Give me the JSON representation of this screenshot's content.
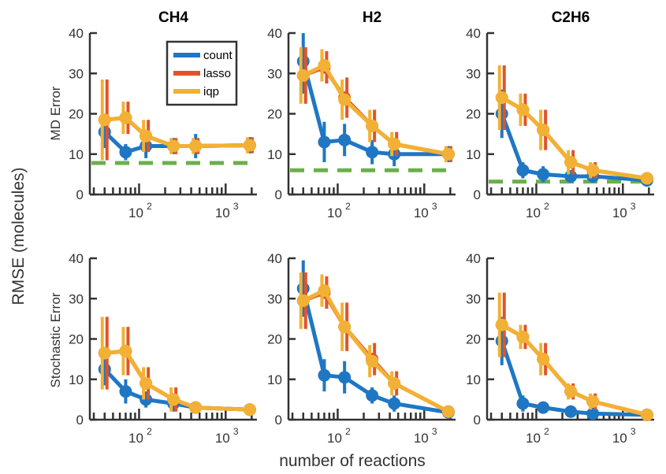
{
  "figure": {
    "ylabel": "RMSE (molecules)",
    "xlabel": "number of reactions",
    "row_labels": [
      "MD Error",
      "Stochastic Error"
    ],
    "col_titles": [
      "CH4",
      "H2",
      "C2H6"
    ]
  },
  "legend": {
    "entries": [
      {
        "label": "count",
        "color": "#1f77c4"
      },
      {
        "label": "lasso",
        "color": "#e0542a"
      },
      {
        "label": "iqp",
        "color": "#f2b134"
      }
    ]
  },
  "colors": {
    "count": "#1f77c4",
    "lasso": "#e0542a",
    "iqp": "#f2b134",
    "md_baseline": "#6ab04c",
    "axes": "#333333"
  },
  "axis": {
    "yticks": [
      "0",
      "10",
      "20",
      "30",
      "40"
    ],
    "xticks": [
      {
        "base": "10",
        "exp": "2"
      },
      {
        "base": "10",
        "exp": "3"
      }
    ]
  },
  "chart_data": [
    {
      "type": "line",
      "row": 0,
      "col": 0,
      "title": "CH4",
      "ylabel": "MD Error",
      "xscale": "log",
      "xlim": [
        27,
        2300
      ],
      "ylim": [
        0,
        40
      ],
      "baseline": 7.8,
      "x": [
        40,
        70,
        120,
        250,
        450,
        1900
      ],
      "series": [
        {
          "name": "count",
          "values": [
            15.5,
            10.5,
            12,
            12,
            12,
            12.2
          ],
          "err": [
            4,
            2,
            3,
            2,
            3,
            2
          ]
        },
        {
          "name": "lasso",
          "values": [
            18.5,
            19,
            14.5,
            12,
            12,
            12.2
          ],
          "err": [
            10,
            4,
            4,
            2,
            2,
            2
          ]
        },
        {
          "name": "iqp",
          "values": [
            18.5,
            19,
            14.5,
            12,
            12,
            12.2
          ],
          "err": [
            10,
            4,
            4,
            2,
            2,
            2
          ]
        }
      ]
    },
    {
      "type": "line",
      "row": 0,
      "col": 1,
      "title": "H2",
      "ylabel": "",
      "xscale": "log",
      "xlim": [
        27,
        2300
      ],
      "ylim": [
        0,
        40
      ],
      "baseline": 6,
      "x": [
        40,
        70,
        120,
        250,
        450,
        1900
      ],
      "series": [
        {
          "name": "count",
          "values": [
            33,
            13,
            13.5,
            10.5,
            10,
            10
          ],
          "err": [
            8,
            5,
            4,
            3,
            3,
            2
          ]
        },
        {
          "name": "lasso",
          "values": [
            29.5,
            31.5,
            24,
            17,
            12.5,
            10
          ],
          "err": [
            7,
            4,
            5,
            4,
            3,
            2
          ]
        },
        {
          "name": "iqp",
          "values": [
            29.5,
            32,
            23.5,
            17,
            12.5,
            10
          ],
          "err": [
            7,
            4,
            5,
            4,
            3,
            2
          ]
        }
      ]
    },
    {
      "type": "line",
      "row": 0,
      "col": 2,
      "title": "C2H6",
      "ylabel": "",
      "xscale": "log",
      "xlim": [
        27,
        2300
      ],
      "ylim": [
        0,
        40
      ],
      "baseline": 3.2,
      "x": [
        40,
        70,
        120,
        250,
        450,
        1900
      ],
      "series": [
        {
          "name": "count",
          "values": [
            20,
            6,
            5,
            4.5,
            4.5,
            3.5
          ],
          "err": [
            6,
            2,
            2,
            1.5,
            1.5,
            1
          ]
        },
        {
          "name": "lasso",
          "values": [
            24,
            21,
            16,
            8,
            6,
            4
          ],
          "err": [
            8,
            4,
            5,
            3,
            2,
            1
          ]
        },
        {
          "name": "iqp",
          "values": [
            24,
            21,
            16,
            8,
            6,
            4
          ],
          "err": [
            8,
            4,
            5,
            3,
            2,
            1
          ]
        }
      ]
    },
    {
      "type": "line",
      "row": 1,
      "col": 0,
      "title": "",
      "ylabel": "Stochastic Error",
      "xscale": "log",
      "xlim": [
        27,
        2300
      ],
      "ylim": [
        0,
        40
      ],
      "x": [
        40,
        70,
        120,
        250,
        450,
        1900
      ],
      "series": [
        {
          "name": "count",
          "values": [
            12.5,
            7,
            5,
            4,
            3,
            2.5
          ],
          "err": [
            4,
            3,
            2,
            2,
            1,
            1
          ]
        },
        {
          "name": "lasso",
          "values": [
            16.5,
            17,
            9,
            5,
            3,
            2.5
          ],
          "err": [
            9,
            6,
            4,
            3,
            1,
            1
          ]
        },
        {
          "name": "iqp",
          "values": [
            16.5,
            17,
            9,
            5,
            3,
            2.5
          ],
          "err": [
            9,
            6,
            4,
            3,
            1,
            1
          ]
        }
      ]
    },
    {
      "type": "line",
      "row": 1,
      "col": 1,
      "title": "",
      "ylabel": "",
      "xscale": "log",
      "xlim": [
        27,
        2300
      ],
      "ylim": [
        0,
        40
      ],
      "x": [
        40,
        70,
        120,
        250,
        450,
        1900
      ],
      "series": [
        {
          "name": "count",
          "values": [
            32.5,
            11,
            10.5,
            6,
            4,
            1.8
          ],
          "err": [
            7,
            4,
            4,
            2,
            2,
            1
          ]
        },
        {
          "name": "lasso",
          "values": [
            29.5,
            31.5,
            23,
            15,
            9,
            2
          ],
          "err": [
            7,
            4,
            6,
            4,
            3,
            1
          ]
        },
        {
          "name": "iqp",
          "values": [
            29.5,
            32,
            23,
            14.5,
            9,
            2
          ],
          "err": [
            7,
            4,
            6,
            4,
            3,
            1
          ]
        }
      ]
    },
    {
      "type": "line",
      "row": 1,
      "col": 2,
      "title": "",
      "ylabel": "",
      "xscale": "log",
      "xlim": [
        27,
        2300
      ],
      "ylim": [
        0,
        40
      ],
      "x": [
        40,
        70,
        120,
        250,
        450,
        1900
      ],
      "series": [
        {
          "name": "count",
          "values": [
            19.5,
            4,
            3,
            2,
            1.5,
            1.2
          ],
          "err": [
            6,
            2,
            1,
            1,
            1,
            0.5
          ]
        },
        {
          "name": "lasso",
          "values": [
            23.5,
            20.5,
            15,
            7,
            4.5,
            1.2
          ],
          "err": [
            8,
            3,
            4,
            2,
            2,
            0.5
          ]
        },
        {
          "name": "iqp",
          "values": [
            23.5,
            20.5,
            15,
            7,
            4.5,
            1.2
          ],
          "err": [
            8,
            3,
            4,
            2,
            2,
            0.5
          ]
        }
      ]
    }
  ]
}
